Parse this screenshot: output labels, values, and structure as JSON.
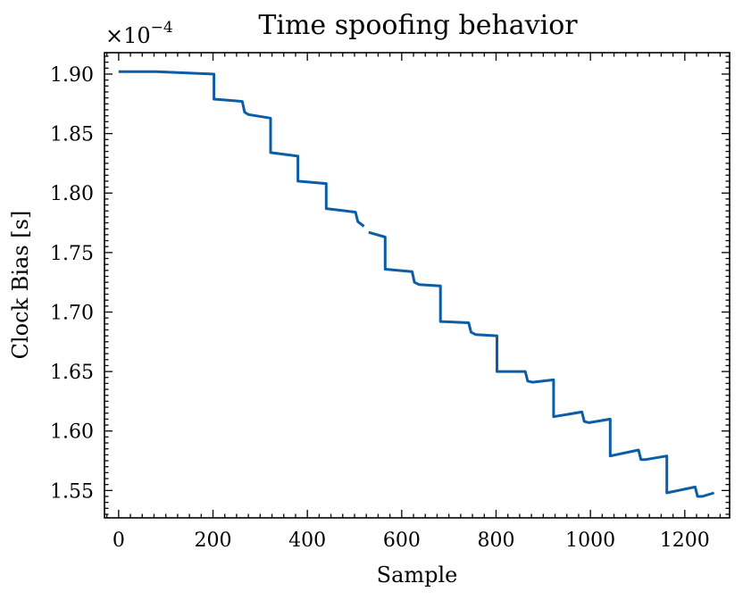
{
  "chart_data": {
    "type": "line",
    "title": "Time spoofing behavior",
    "xlabel": "Sample",
    "ylabel": "Clock Bias [s]",
    "y_multiplier_label": "×10",
    "y_multiplier_exponent": "−4",
    "xlim": [
      -30,
      1295
    ],
    "ylim": [
      1.527,
      1.918
    ],
    "xticks": [
      0,
      200,
      400,
      600,
      800,
      1000,
      1200
    ],
    "yticks": [
      1.55,
      1.6,
      1.65,
      1.7,
      1.75,
      1.8,
      1.85,
      1.9
    ],
    "xtick_labels": [
      "0",
      "200",
      "400",
      "600",
      "800",
      "1000",
      "1200"
    ],
    "ytick_labels": [
      "1.55",
      "1.60",
      "1.65",
      "1.70",
      "1.75",
      "1.80",
      "1.85",
      "1.90"
    ],
    "grid": false,
    "color": "#0C5DA5",
    "series": [
      {
        "segments": [
          [
            [
              0,
              1.902
            ],
            [
              80,
              1.902
            ],
            [
              202,
              1.9
            ],
            [
              202,
              1.879
            ],
            [
              262,
              1.877
            ],
            [
              267,
              1.868
            ],
            [
              275,
              1.866
            ],
            [
              322,
              1.863
            ],
            [
              322,
              1.834
            ],
            [
              380,
              1.831
            ],
            [
              380,
              1.81
            ],
            [
              440,
              1.808
            ],
            [
              440,
              1.787
            ],
            [
              502,
              1.784
            ],
            [
              507,
              1.776
            ],
            [
              520,
              1.772
            ]
          ],
          [
            [
              530,
              1.767
            ],
            [
              548,
              1.765
            ],
            [
              565,
              1.763
            ],
            [
              565,
              1.736
            ],
            [
              622,
              1.734
            ],
            [
              627,
              1.725
            ],
            [
              637,
              1.723
            ],
            [
              682,
              1.722
            ],
            [
              682,
              1.692
            ],
            [
              742,
              1.691
            ],
            [
              747,
              1.683
            ],
            [
              757,
              1.681
            ],
            [
              802,
              1.68
            ],
            [
              802,
              1.65
            ],
            [
              862,
              1.65
            ],
            [
              867,
              1.642
            ],
            [
              877,
              1.641
            ],
            [
              922,
              1.643
            ],
            [
              922,
              1.612
            ],
            [
              982,
              1.616
            ],
            [
              987,
              1.608
            ],
            [
              997,
              1.607
            ],
            [
              1042,
              1.61
            ],
            [
              1042,
              1.579
            ],
            [
              1102,
              1.584
            ],
            [
              1107,
              1.576
            ],
            [
              1117,
              1.576
            ],
            [
              1162,
              1.579
            ],
            [
              1162,
              1.548
            ],
            [
              1222,
              1.553
            ],
            [
              1227,
              1.545
            ],
            [
              1237,
              1.545
            ],
            [
              1262,
              1.548
            ]
          ]
        ]
      }
    ]
  }
}
